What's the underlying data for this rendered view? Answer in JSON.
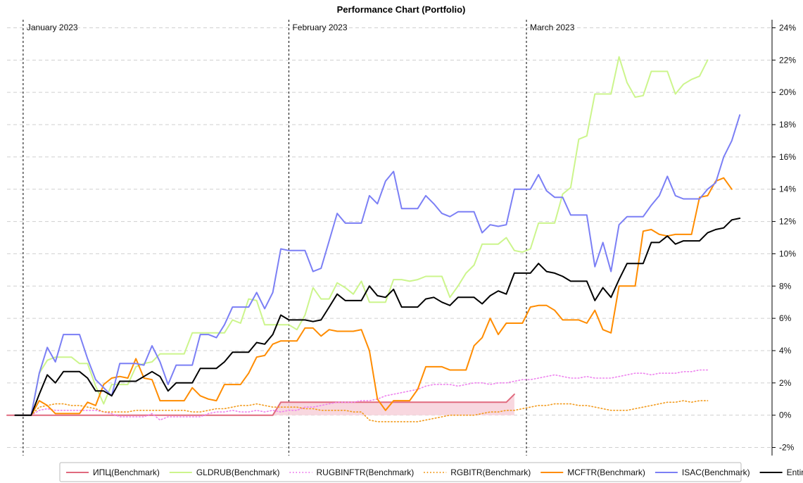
{
  "chart_data": {
    "type": "line",
    "title": "Performance Chart (Portfolio)",
    "xlabel": "",
    "ylabel": "",
    "ylim": [
      -2.5,
      24.5
    ],
    "y_ticks": [
      -2,
      0,
      2,
      4,
      6,
      8,
      10,
      12,
      14,
      16,
      18,
      20,
      22,
      24
    ],
    "y_tick_labels": [
      "-2%",
      "0%",
      "2%",
      "4%",
      "6%",
      "8%",
      "10%",
      "12%",
      "14%",
      "16%",
      "18%",
      "20%",
      "22%",
      "24%"
    ],
    "y_axis_side": "right",
    "grid": true,
    "legend_position": "bottom",
    "x_range": [
      -1,
      94
    ],
    "month_markers": [
      {
        "x": 1,
        "label": "January 2023"
      },
      {
        "x": 34,
        "label": "February 2023"
      },
      {
        "x": 63.5,
        "label": "March 2023"
      }
    ],
    "series": [
      {
        "name": "ИПЦ(Benchmark)",
        "color": "#e06a7e",
        "style": "solid",
        "fill": "#f7d3db",
        "x": [
          -1,
          1,
          2,
          31,
          32,
          33,
          34,
          41,
          50,
          61,
          62
        ],
        "values": [
          0,
          0,
          0,
          0,
          0,
          0.8,
          0.8,
          0.8,
          0.8,
          0.8,
          1.3
        ]
      },
      {
        "name": "GLDRUB(Benchmark)",
        "color": "#ccf58c",
        "style": "solid",
        "values": [
          0,
          0,
          0,
          2.6,
          3.4,
          3.6,
          3.6,
          3.6,
          3.2,
          3.2,
          1.8,
          0.7,
          1.9,
          1.9,
          1.9,
          3.0,
          3.2,
          3.3,
          3.8,
          3.8,
          3.8,
          3.8,
          5.1,
          5.1,
          5.1,
          5.1,
          5.1,
          5.9,
          5.7,
          7.2,
          7.1,
          5.6,
          5.6,
          5.6,
          5.6,
          5.3,
          6.2,
          7.9,
          7.2,
          7.2,
          8.2,
          7.9,
          7.5,
          8.3,
          7.0,
          7.0,
          7.0,
          8.4,
          8.4,
          8.3,
          8.4,
          8.6,
          8.6,
          8.6,
          7.3,
          8.0,
          8.8,
          9.3,
          10.6,
          10.6,
          10.6,
          11.0,
          10.2,
          10.1,
          10.3,
          11.9,
          11.9,
          11.9,
          13.7,
          14.1,
          17.1,
          17.3,
          19.9,
          19.9,
          19.9,
          22.2,
          20.6,
          19.7,
          19.8,
          21.3,
          21.3,
          21.3,
          19.9,
          20.5,
          20.8,
          21.0,
          22.0
        ]
      },
      {
        "name": "RUGBINFTR(Benchmark)",
        "color": "#ee82ee",
        "style": "dotted",
        "values": [
          0,
          0,
          0,
          0.3,
          0.4,
          0.3,
          0.3,
          0.3,
          0.3,
          0.3,
          0.3,
          0.2,
          0.1,
          -0.1,
          -0.1,
          -0.1,
          -0.1,
          0.1,
          -0.3,
          -0.1,
          -0.1,
          -0.1,
          -0.1,
          -0.1,
          0.1,
          0.2,
          0.2,
          0.3,
          0.2,
          0.2,
          0.3,
          0.2,
          0.3,
          0.2,
          0.3,
          0.3,
          0.5,
          0.5,
          0.6,
          0.7,
          0.8,
          0.8,
          0.8,
          0.9,
          0.9,
          1.0,
          1.2,
          1.3,
          1.4,
          1.5,
          1.6,
          1.8,
          1.9,
          1.9,
          1.9,
          1.8,
          1.9,
          2.0,
          2.0,
          1.9,
          2.0,
          2.0,
          2.1,
          2.2,
          2.2,
          2.3,
          2.4,
          2.5,
          2.4,
          2.3,
          2.3,
          2.4,
          2.3,
          2.3,
          2.3,
          2.4,
          2.5,
          2.6,
          2.6,
          2.5,
          2.6,
          2.6,
          2.6,
          2.7,
          2.7,
          2.8,
          2.8
        ]
      },
      {
        "name": "RGBITR(Benchmark)",
        "color": "#f29a1c",
        "style": "dotted",
        "values": [
          0,
          0,
          0,
          0.5,
          0.6,
          0.7,
          0.7,
          0.6,
          0.6,
          0.5,
          0.4,
          0.2,
          0.2,
          0.2,
          0.2,
          0.3,
          0.3,
          0.3,
          0.3,
          0.3,
          0.3,
          0.3,
          0.2,
          0.2,
          0.3,
          0.4,
          0.4,
          0.5,
          0.6,
          0.6,
          0.7,
          0.6,
          0.5,
          0.5,
          0.5,
          0.5,
          0.4,
          0.4,
          0.3,
          0.3,
          0.3,
          0.3,
          0.2,
          0.2,
          -0.3,
          -0.4,
          -0.4,
          -0.4,
          -0.4,
          -0.4,
          -0.4,
          -0.3,
          -0.2,
          -0.1,
          0.0,
          0.0,
          0.0,
          0.0,
          0.1,
          0.2,
          0.2,
          0.3,
          0.3,
          0.4,
          0.5,
          0.6,
          0.6,
          0.7,
          0.7,
          0.7,
          0.6,
          0.6,
          0.5,
          0.4,
          0.3,
          0.3,
          0.3,
          0.4,
          0.5,
          0.6,
          0.7,
          0.8,
          0.8,
          0.9,
          0.8,
          0.9,
          0.9
        ]
      },
      {
        "name": "MCFTR(Benchmark)",
        "color": "#ff8c00",
        "style": "solid",
        "values": [
          0,
          0,
          0,
          0.9,
          0.6,
          0.1,
          0.1,
          0.1,
          0.1,
          0.8,
          0.6,
          1.9,
          2.3,
          2.4,
          2.3,
          3.5,
          2.3,
          2.2,
          0.9,
          0.9,
          0.9,
          0.9,
          1.7,
          1.2,
          1.0,
          0.9,
          1.9,
          1.9,
          1.9,
          2.6,
          3.6,
          3.7,
          4.4,
          4.6,
          4.6,
          4.6,
          5.4,
          5.4,
          4.9,
          5.3,
          5.2,
          5.2,
          5.2,
          5.3,
          4.0,
          1.0,
          0.3,
          0.9,
          0.9,
          0.9,
          1.6,
          3.0,
          3.0,
          3.0,
          2.8,
          2.8,
          2.8,
          4.3,
          4.8,
          6.0,
          5.0,
          5.7,
          5.7,
          5.7,
          6.7,
          6.8,
          6.8,
          6.5,
          5.9,
          5.9,
          5.9,
          5.7,
          6.5,
          5.3,
          5.1,
          8.0,
          8.0,
          8.0,
          11.4,
          11.5,
          11.2,
          11.1,
          11.2,
          11.2,
          11.2,
          13.5,
          13.6,
          14.5,
          14.7,
          14.0
        ]
      },
      {
        "name": "ISAC(Benchmark)",
        "color": "#7b7ff5",
        "style": "solid",
        "values": [
          0,
          0,
          0,
          2.6,
          4.2,
          3.3,
          5.0,
          5.0,
          5.0,
          3.5,
          2.2,
          1.7,
          1.2,
          3.2,
          3.2,
          3.2,
          3.1,
          4.3,
          3.3,
          1.9,
          3.1,
          3.1,
          3.1,
          5.0,
          5.0,
          4.8,
          5.6,
          6.7,
          6.7,
          6.7,
          7.6,
          6.6,
          7.6,
          10.3,
          10.2,
          10.2,
          10.2,
          8.9,
          9.1,
          10.8,
          12.5,
          11.9,
          11.9,
          11.9,
          13.6,
          13.1,
          14.5,
          15.1,
          12.8,
          12.8,
          12.8,
          13.6,
          13.1,
          12.5,
          12.3,
          12.6,
          12.6,
          12.6,
          11.3,
          11.8,
          11.7,
          11.8,
          14.0,
          14.0,
          14.0,
          14.9,
          13.9,
          13.5,
          13.5,
          12.4,
          12.4,
          12.4,
          9.2,
          10.7,
          8.9,
          11.8,
          12.3,
          12.3,
          12.3,
          13.0,
          13.6,
          14.8,
          13.6,
          13.4,
          13.4,
          13.4,
          14.0,
          14.4,
          16.0,
          17.0,
          18.6
        ]
      },
      {
        "name": "Entire portfolio",
        "color": "#000000",
        "style": "solid",
        "values": [
          0,
          0,
          0,
          1.3,
          2.5,
          2.0,
          2.7,
          2.7,
          2.7,
          2.3,
          1.5,
          1.5,
          1.2,
          2.1,
          2.1,
          2.1,
          2.4,
          2.7,
          2.4,
          1.5,
          2.0,
          2.0,
          2.0,
          2.9,
          2.9,
          2.9,
          3.3,
          3.9,
          3.9,
          3.9,
          4.5,
          4.4,
          5.0,
          6.2,
          5.9,
          5.9,
          5.9,
          5.8,
          5.9,
          6.7,
          7.5,
          7.1,
          7.1,
          7.1,
          8.0,
          7.4,
          7.3,
          7.8,
          6.7,
          6.7,
          6.7,
          7.2,
          7.3,
          7.0,
          6.8,
          7.3,
          7.3,
          7.3,
          6.9,
          7.4,
          7.7,
          7.5,
          8.8,
          8.8,
          8.8,
          9.4,
          8.9,
          8.8,
          8.6,
          8.3,
          8.3,
          8.3,
          7.1,
          7.9,
          7.3,
          8.4,
          9.4,
          9.4,
          9.4,
          10.7,
          10.7,
          11.1,
          10.6,
          10.8,
          10.8,
          10.8,
          11.3,
          11.5,
          11.6,
          12.1,
          12.2
        ]
      }
    ]
  }
}
